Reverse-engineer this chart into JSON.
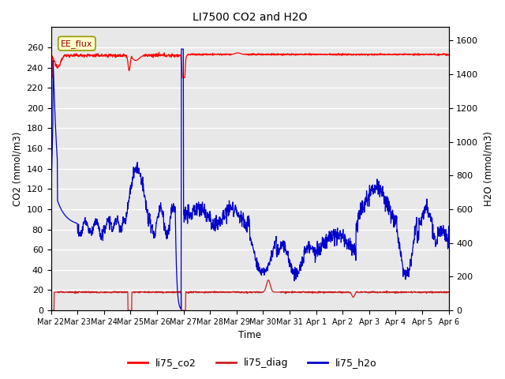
{
  "title": "LI7500 CO2 and H2O",
  "xlabel": "Time",
  "ylabel_left": "CO2 (mmol/m3)",
  "ylabel_right": "H2O (mmol/m3)",
  "ylim_left": [
    0,
    280
  ],
  "ylim_right": [
    0,
    1680
  ],
  "yticks_left": [
    0,
    20,
    40,
    60,
    80,
    100,
    120,
    140,
    160,
    180,
    200,
    220,
    240,
    260
  ],
  "yticks_right": [
    0,
    200,
    400,
    600,
    800,
    1000,
    1200,
    1400,
    1600
  ],
  "xtick_labels": [
    "Mar 22",
    "Mar 23",
    "Mar 24",
    "Mar 25",
    "Mar 26",
    "Mar 27",
    "Mar 28",
    "Mar 29",
    "Mar 30",
    "Mar 31",
    "Apr 1",
    "Apr 2",
    "Apr 3",
    "Apr 4",
    "Apr 5",
    "Apr 6"
  ],
  "annotation_text": "EE_flux",
  "bg_color": "#e8e8e8",
  "line_co2_color": "#ff0000",
  "line_diag_color": "#cc2222",
  "line_h2o_color": "#0000cc",
  "legend_labels": [
    "li75_co2",
    "li75_diag",
    "li75_h2o"
  ],
  "legend_colors": [
    "#ff0000",
    "#cc2222",
    "#0000cc"
  ],
  "n_days": 15,
  "n_points": 1440
}
